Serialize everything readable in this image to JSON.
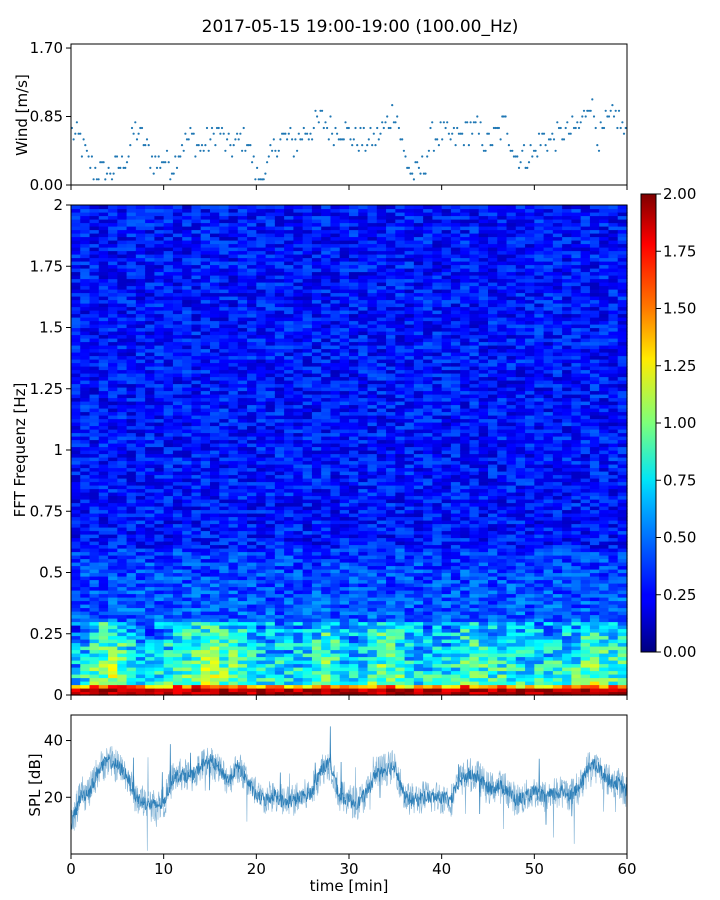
{
  "title": "2017-05-15 19:00-19:00 (100.00_Hz)",
  "chart_data": [
    {
      "type": "scatter",
      "name": "wind",
      "ylabel": "Wind [m/s]",
      "ylim": [
        0.0,
        1.75
      ],
      "yticks": [
        0.0,
        0.85,
        1.7
      ],
      "ytick_labels": [
        "0.00",
        "0.85",
        "1.70"
      ],
      "xlim": [
        0,
        60
      ],
      "color": "#1f77b4",
      "quantization_step": 0.0708,
      "trend": {
        "x": [
          0,
          1,
          2,
          3,
          4,
          5,
          6,
          7,
          8,
          9,
          10,
          11,
          12,
          13,
          14,
          15,
          16,
          17,
          18,
          19,
          20,
          21,
          22,
          23,
          24,
          25,
          26,
          27,
          28,
          29,
          30,
          31,
          32,
          33,
          34,
          35,
          36,
          37,
          38,
          39,
          40,
          41,
          42,
          43,
          44,
          45,
          46,
          47,
          48,
          49,
          50,
          51,
          52,
          53,
          54,
          55,
          56,
          57,
          58,
          59,
          60
        ],
        "y": [
          0.65,
          0.55,
          0.25,
          0.15,
          0.15,
          0.2,
          0.35,
          0.7,
          0.5,
          0.25,
          0.3,
          0.25,
          0.5,
          0.6,
          0.45,
          0.55,
          0.7,
          0.45,
          0.55,
          0.6,
          0.1,
          0.1,
          0.5,
          0.6,
          0.5,
          0.65,
          0.7,
          0.8,
          0.7,
          0.7,
          0.65,
          0.55,
          0.55,
          0.6,
          0.75,
          0.95,
          0.35,
          0.1,
          0.2,
          0.6,
          0.65,
          0.55,
          0.6,
          0.7,
          0.65,
          0.5,
          0.65,
          0.75,
          0.35,
          0.35,
          0.4,
          0.6,
          0.55,
          0.65,
          0.65,
          0.75,
          1.1,
          0.55,
          0.8,
          0.85,
          0.55
        ]
      }
    },
    {
      "type": "heatmap",
      "name": "spectrogram",
      "ylabel": "FFT Frequenz [Hz]",
      "ylim": [
        0,
        2
      ],
      "yticks": [
        0,
        0.25,
        0.5,
        0.75,
        1,
        1.25,
        1.5,
        1.75,
        2
      ],
      "ytick_labels": [
        "0",
        "0.25",
        "0.5",
        "0.75",
        "1",
        "1.25",
        "1.5",
        "1.75",
        "2"
      ],
      "xlim": [
        0,
        60
      ],
      "colormap": "jet",
      "colorbar": {
        "vmin": 0.0,
        "vmax": 2.0,
        "ticks": [
          0.0,
          0.25,
          0.5,
          0.75,
          1.0,
          1.25,
          1.5,
          1.75,
          2.0
        ],
        "tick_labels": [
          "0.00",
          "0.25",
          "0.50",
          "0.75",
          "1.00",
          "1.25",
          "1.50",
          "1.75",
          "2.00"
        ]
      },
      "description_of_values": {
        "low_frequency_band_0_to_0.05_Hz": 1.7,
        "band_0.05_to_0.3_Hz": 0.75,
        "above_0.5_Hz": 0.25
      }
    },
    {
      "type": "line",
      "name": "spl",
      "ylabel": "SPL [dB]",
      "xlabel": "time [min]",
      "ylim": [
        0,
        49
      ],
      "yticks": [
        20,
        40
      ],
      "ytick_labels": [
        "20",
        "40"
      ],
      "xlim": [
        0,
        60
      ],
      "xticks": [
        0,
        10,
        20,
        30,
        40,
        50,
        60
      ],
      "xtick_labels": [
        "0",
        "10",
        "20",
        "30",
        "40",
        "50",
        "60"
      ],
      "color": "#1f77b4",
      "trend": {
        "x": [
          0,
          1,
          2,
          3,
          4,
          5,
          6,
          7,
          8,
          9,
          10,
          11,
          12,
          13,
          14,
          15,
          16,
          17,
          18,
          19,
          20,
          21,
          22,
          23,
          24,
          25,
          26,
          27,
          28,
          29,
          30,
          31,
          32,
          33,
          34,
          35,
          36,
          37,
          38,
          39,
          40,
          41,
          42,
          43,
          44,
          45,
          46,
          47,
          48,
          49,
          50,
          51,
          52,
          53,
          54,
          55,
          56,
          57,
          58,
          59,
          60
        ],
        "y": [
          10,
          20,
          22,
          30,
          33,
          31,
          28,
          20,
          18,
          17,
          18,
          27,
          28,
          27,
          31,
          33,
          30,
          26,
          31,
          26,
          20,
          19,
          21,
          18,
          19,
          20,
          22,
          30,
          32,
          20,
          19,
          18,
          22,
          29,
          30,
          31,
          20,
          19,
          20,
          20,
          20,
          19,
          26,
          28,
          27,
          23,
          24,
          23,
          19,
          20,
          22,
          20,
          21,
          22,
          21,
          24,
          32,
          30,
          26,
          25,
          22
        ]
      }
    }
  ]
}
